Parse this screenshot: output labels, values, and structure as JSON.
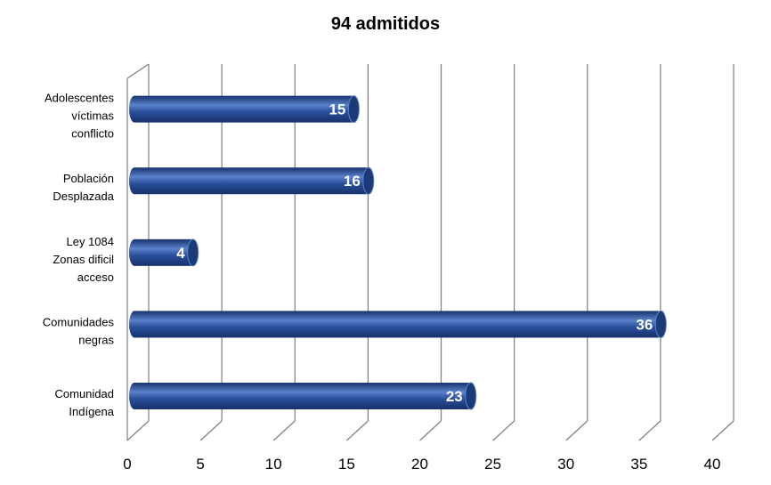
{
  "chart_data": {
    "type": "bar",
    "orientation": "horizontal",
    "title": "94 admitidos",
    "categories": [
      [
        "Adolescentes",
        "víctimas",
        "conflicto"
      ],
      [
        "Población",
        "Desplazada"
      ],
      [
        "Ley 1084",
        "Zonas dificil",
        "acceso"
      ],
      [
        "Comunidades",
        "negras"
      ],
      [
        "Comunidad",
        "Indígena"
      ]
    ],
    "values": [
      15,
      16,
      4,
      36,
      23
    ],
    "data_labels": [
      "15",
      "16",
      "4",
      "36",
      "23"
    ],
    "xlim": [
      0,
      40
    ],
    "xticks": [
      0,
      5,
      10,
      15,
      20,
      25,
      30,
      35,
      40
    ],
    "grid": true,
    "legend": "none",
    "bar_color": "#2a4f9c",
    "bar_color_light": "#5b82cc",
    "bar_color_dark": "#17316a",
    "bar_end_color": "#1b3a78",
    "grid_color": "#7f7f7f"
  }
}
